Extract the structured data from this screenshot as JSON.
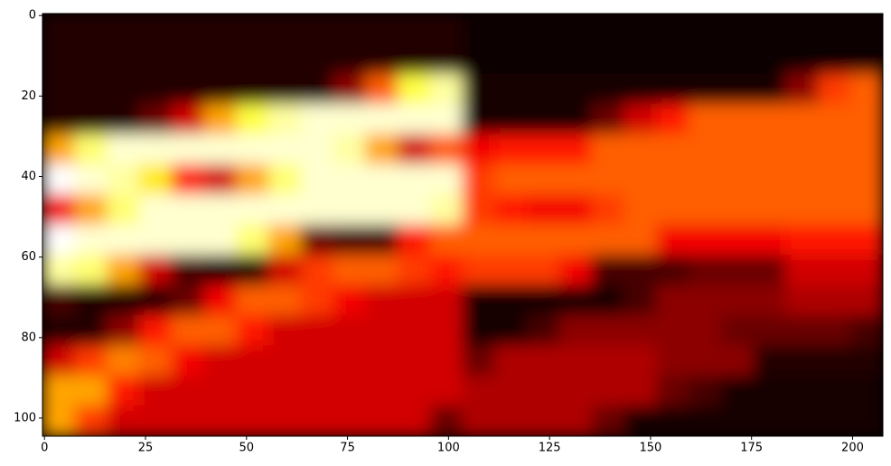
{
  "chart_data": {
    "type": "heatmap",
    "colormap": "hot",
    "xlim": [
      -0.5,
      207.5
    ],
    "ylim": [
      104.5,
      -0.5
    ],
    "xticks": [
      0,
      25,
      50,
      75,
      100,
      125,
      150,
      175,
      200
    ],
    "yticks": [
      0,
      20,
      40,
      60,
      80,
      100
    ],
    "vlim": [
      0,
      1
    ],
    "z": [
      [
        0.05,
        0.05,
        0.05,
        0.05,
        0.05,
        0.05,
        0.05,
        0.05,
        0.05,
        0.05,
        0.05,
        0.05,
        0.05,
        0.02,
        0.02,
        0.02,
        0.02,
        0.02,
        0.02,
        0.02,
        0.02,
        0.02,
        0.02,
        0.02,
        0.02,
        0.02
      ],
      [
        0.05,
        0.05,
        0.05,
        0.05,
        0.05,
        0.05,
        0.05,
        0.05,
        0.05,
        0.05,
        0.05,
        0.05,
        0.05,
        0.02,
        0.02,
        0.02,
        0.02,
        0.02,
        0.02,
        0.02,
        0.02,
        0.02,
        0.02,
        0.02,
        0.02,
        0.02
      ],
      [
        0.05,
        0.05,
        0.05,
        0.05,
        0.05,
        0.05,
        0.05,
        0.05,
        0.05,
        0.2,
        0.5,
        0.8,
        0.9,
        0.03,
        0.03,
        0.03,
        0.03,
        0.03,
        0.03,
        0.03,
        0.03,
        0.03,
        0.03,
        0.2,
        0.45,
        0.5
      ],
      [
        0.05,
        0.05,
        0.05,
        0.15,
        0.3,
        0.6,
        0.8,
        0.9,
        0.95,
        0.95,
        0.95,
        0.95,
        0.95,
        0.03,
        0.03,
        0.03,
        0.03,
        0.15,
        0.3,
        0.4,
        0.5,
        0.5,
        0.5,
        0.5,
        0.5,
        0.5
      ],
      [
        0.6,
        0.85,
        0.95,
        0.95,
        0.95,
        0.95,
        0.95,
        0.95,
        0.95,
        0.9,
        0.6,
        0.3,
        0.5,
        0.35,
        0.4,
        0.4,
        0.4,
        0.5,
        0.5,
        0.5,
        0.5,
        0.5,
        0.5,
        0.5,
        0.5,
        0.5
      ],
      [
        1,
        0.95,
        0.9,
        0.7,
        0.4,
        0.3,
        0.6,
        0.85,
        0.95,
        0.95,
        0.95,
        0.95,
        0.95,
        0.45,
        0.5,
        0.5,
        0.5,
        0.5,
        0.5,
        0.5,
        0.5,
        0.5,
        0.5,
        0.5,
        0.5,
        0.5
      ],
      [
        0.35,
        0.6,
        0.85,
        0.95,
        0.95,
        0.95,
        0.95,
        0.95,
        0.95,
        0.95,
        0.95,
        0.95,
        0.9,
        0.45,
        0.4,
        0.35,
        0.35,
        0.45,
        0.5,
        0.5,
        0.5,
        0.5,
        0.5,
        0.5,
        0.5,
        0.5
      ],
      [
        1,
        0.95,
        0.95,
        0.95,
        0.95,
        0.95,
        0.85,
        0.6,
        0.15,
        0.1,
        0.1,
        0.4,
        0.5,
        0.5,
        0.5,
        0.5,
        0.5,
        0.5,
        0.5,
        0.35,
        0.35,
        0.35,
        0.35,
        0.4,
        0.4,
        0.4
      ],
      [
        0.9,
        0.85,
        0.6,
        0.3,
        0.1,
        0.05,
        0.05,
        0.3,
        0.45,
        0.5,
        0.5,
        0.45,
        0.4,
        0.45,
        0.45,
        0.45,
        0.35,
        0.1,
        0.1,
        0.1,
        0.15,
        0.15,
        0.15,
        0.3,
        0.3,
        0.3
      ],
      [
        0.1,
        0.05,
        0.05,
        0.05,
        0.15,
        0.35,
        0.5,
        0.5,
        0.45,
        0.35,
        0.3,
        0.3,
        0.3,
        0.03,
        0.03,
        0.03,
        0.03,
        0.03,
        0.1,
        0.2,
        0.2,
        0.2,
        0.2,
        0.25,
        0.25,
        0.25
      ],
      [
        0.05,
        0.05,
        0.2,
        0.4,
        0.5,
        0.5,
        0.4,
        0.3,
        0.3,
        0.3,
        0.3,
        0.3,
        0.3,
        0.03,
        0.03,
        0.1,
        0.2,
        0.2,
        0.2,
        0.2,
        0.2,
        0.15,
        0.15,
        0.15,
        0.15,
        0.1
      ],
      [
        0.3,
        0.45,
        0.55,
        0.5,
        0.35,
        0.3,
        0.3,
        0.3,
        0.3,
        0.3,
        0.3,
        0.3,
        0.3,
        0.15,
        0.25,
        0.25,
        0.25,
        0.25,
        0.25,
        0.2,
        0.2,
        0.2,
        0.05,
        0.05,
        0.05,
        0.05
      ],
      [
        0.6,
        0.6,
        0.4,
        0.3,
        0.3,
        0.3,
        0.3,
        0.3,
        0.3,
        0.3,
        0.3,
        0.3,
        0.3,
        0.25,
        0.25,
        0.25,
        0.25,
        0.25,
        0.25,
        0.15,
        0.1,
        0.03,
        0.03,
        0.03,
        0.03,
        0.03
      ],
      [
        0.6,
        0.45,
        0.3,
        0.3,
        0.3,
        0.3,
        0.3,
        0.3,
        0.3,
        0.3,
        0.3,
        0.3,
        0.15,
        0.25,
        0.25,
        0.25,
        0.25,
        0.15,
        0.03,
        0.03,
        0.03,
        0.03,
        0.03,
        0.03,
        0.03,
        0.03
      ]
    ]
  }
}
